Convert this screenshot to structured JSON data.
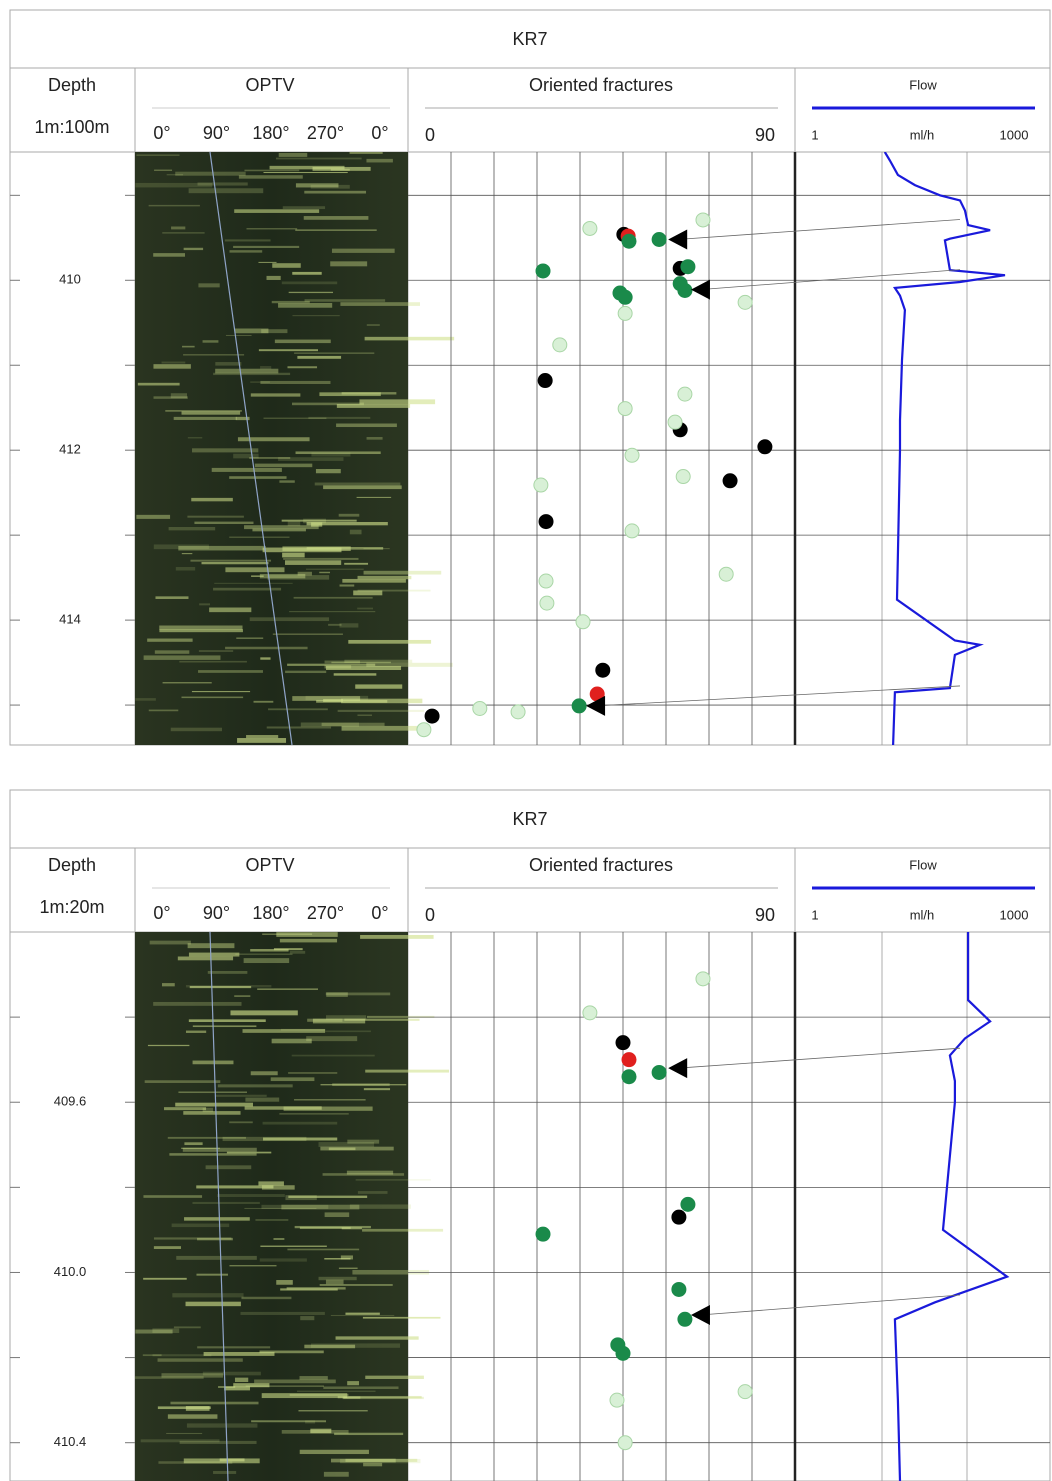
{
  "chart_data": [
    {
      "type": "well-log",
      "title": "KR7",
      "depth_header": "Depth",
      "scale": "1m:100m",
      "ylim": [
        408.49,
        415.47
      ],
      "yticks": [
        410,
        412,
        414
      ],
      "minor_yticks": [
        409,
        411,
        413,
        415
      ],
      "optv": {
        "title": "OPTV",
        "ticks": [
          "0°",
          "90°",
          "180°",
          "270°",
          "0°"
        ]
      },
      "fractures": {
        "title": "Oriented fractures",
        "xlim": [
          0,
          90
        ],
        "xticks": [
          0,
          90
        ],
        "minor_xticks": [
          10,
          20,
          30,
          40,
          50,
          60,
          70,
          80
        ],
        "series": [
          {
            "color": "#000000",
            "dip": [
              50.2,
              63.3,
              31.9,
              63.3,
              83.0,
              74.9,
              32.1,
              45.3,
              5.6
            ],
            "depth": [
              409.46,
              409.86,
              411.18,
              411.76,
              411.96,
              412.36,
              412.84,
              414.59,
              415.13
            ]
          },
          {
            "color": "#e0201e",
            "dip": [
              51.2,
              44.0
            ],
            "depth": [
              409.48,
              414.87
            ]
          },
          {
            "color": "#1a8a4a",
            "dip": [
              51.4,
              58.4,
              65.1,
              31.4,
              49.3,
              50.5,
              63.3,
              64.4,
              39.8
            ],
            "depth": [
              409.54,
              409.52,
              409.84,
              409.89,
              410.15,
              410.2,
              410.04,
              410.12,
              415.01
            ]
          },
          {
            "color": "#d8f0d6",
            "dip": [
              42.3,
              68.6,
              78.4,
              50.5,
              35.3,
              64.4,
              50.5,
              62.1,
              52.1,
              30.9,
              64.0,
              52.1,
              74.0,
              32.1,
              32.3,
              40.7,
              25.6,
              16.7,
              3.7
            ],
            "depth": [
              409.39,
              409.29,
              410.26,
              410.39,
              410.76,
              411.34,
              411.51,
              411.67,
              412.06,
              412.41,
              412.31,
              412.95,
              413.46,
              413.54,
              413.8,
              414.02,
              415.08,
              415.04,
              415.29
            ]
          }
        ],
        "flow_markers": {
          "dip": [
            62.6,
            67.9,
            43.5
          ],
          "depth": [
            409.52,
            410.11,
            415.01
          ]
        }
      },
      "flow": {
        "title": "Flow",
        "unit": "ml/h",
        "log": true,
        "color": "#1a1adb",
        "xlim": [
          1,
          1000
        ],
        "xticks": [
          1,
          1000
        ],
        "minor_xticks": [
          10,
          100
        ],
        "values": [
          10.8,
          12.4,
          15.4,
          24.4,
          48,
          82.7,
          94.7,
          103,
          187,
          63,
          55,
          63,
          280,
          82.7,
          14.2,
          16.3,
          18.6,
          17.2,
          16.3,
          16.3,
          15,
          72,
          142,
          72,
          63,
          14.2,
          13.5
        ],
        "depth": [
          408.49,
          408.59,
          408.76,
          408.88,
          409.0,
          409.06,
          409.18,
          409.35,
          409.41,
          409.51,
          409.53,
          409.88,
          409.94,
          410.02,
          410.09,
          410.18,
          410.35,
          410.94,
          411.65,
          412.0,
          413.76,
          414.24,
          414.29,
          414.41,
          414.8,
          414.85,
          415.47
        ]
      }
    },
    {
      "type": "well-log",
      "title": "KR7",
      "depth_header": "Depth",
      "scale": "1m:20m",
      "ylim": [
        409.2,
        410.49
      ],
      "yticks": [
        409.6,
        {
          "value": 410,
          "label": "410.0"
        },
        410.4
      ],
      "minor_yticks": [
        409.4,
        409.8,
        410.2
      ],
      "optv": {
        "title": "OPTV",
        "ticks": [
          "0°",
          "90°",
          "180°",
          "270°",
          "0°"
        ]
      },
      "fractures": {
        "title": "Oriented fractures",
        "xlim": [
          0,
          90
        ],
        "xticks": [
          0,
          90
        ],
        "minor_xticks": [
          10,
          20,
          30,
          40,
          50,
          60,
          70,
          80
        ],
        "series": [
          {
            "color": "#000000",
            "dip": [
              50.0,
              63.0
            ],
            "depth": [
              409.46,
              409.87
            ]
          },
          {
            "color": "#e0201e",
            "dip": [
              51.4
            ],
            "depth": [
              409.5
            ]
          },
          {
            "color": "#1a8a4a",
            "dip": [
              51.4,
              58.4,
              65.1,
              31.4,
              63.0,
              64.4,
              48.8,
              50.0
            ],
            "depth": [
              409.54,
              409.53,
              409.84,
              409.91,
              410.04,
              410.11,
              410.17,
              410.19
            ]
          },
          {
            "color": "#d8f0d6",
            "dip": [
              68.6,
              42.3,
              78.4,
              48.6,
              50.5
            ],
            "depth": [
              409.31,
              409.39,
              410.28,
              410.3,
              410.4
            ]
          }
        ],
        "flow_markers": {
          "dip": [
            62.6,
            67.9
          ],
          "depth": [
            409.52,
            410.1
          ]
        }
      },
      "flow": {
        "title": "Flow",
        "unit": "ml/h",
        "log": true,
        "color": "#1a1adb",
        "xlim": [
          1,
          1000
        ],
        "xticks": [
          1,
          1000
        ],
        "minor_xticks": [
          10,
          100
        ],
        "values": [
          103,
          103,
          187,
          94.7,
          63,
          72,
          72,
          52.2,
          296,
          42,
          14.2,
          15.4,
          16.3
        ],
        "depth": [
          409.2,
          409.36,
          409.41,
          409.45,
          409.49,
          409.55,
          409.6,
          409.9,
          410.01,
          410.07,
          410.11,
          410.3,
          410.49
        ]
      }
    }
  ]
}
